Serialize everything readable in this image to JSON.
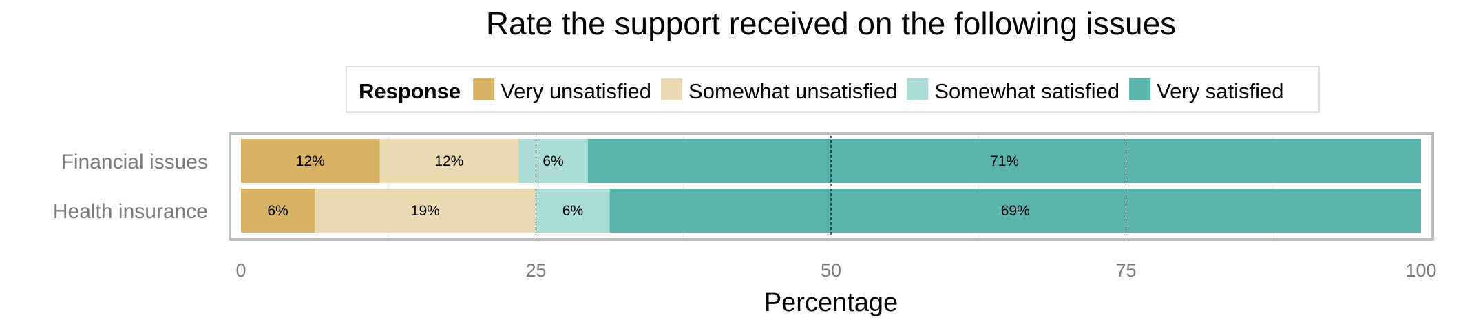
{
  "chart_data": {
    "type": "bar",
    "orientation": "horizontal",
    "stacked": true,
    "title": "Rate the support received on the following issues",
    "xlabel": "Percentage",
    "ylabel": "",
    "xlim": [
      0,
      100
    ],
    "xticks": [
      0,
      25,
      50,
      75,
      100
    ],
    "grid": true,
    "legend": {
      "title": "Response",
      "placement": "top"
    },
    "categories": [
      "Financial issues",
      "Health insurance"
    ],
    "series": [
      {
        "name": "Very unsatisfied",
        "color": "#d8b365",
        "values": [
          11.76,
          6.25
        ],
        "labels": [
          "12%",
          "6%"
        ]
      },
      {
        "name": "Somewhat unsatisfied",
        "color": "#ebdab1",
        "values": [
          11.76,
          18.75
        ],
        "labels": [
          "12%",
          "19%"
        ]
      },
      {
        "name": "Somewhat satisfied",
        "color": "#acdcd6",
        "values": [
          5.88,
          6.25
        ],
        "labels": [
          "6%",
          "6%"
        ]
      },
      {
        "name": "Very satisfied",
        "color": "#5ab4ac",
        "values": [
          70.6,
          68.75
        ],
        "labels": [
          "71%",
          "69%"
        ]
      }
    ]
  }
}
